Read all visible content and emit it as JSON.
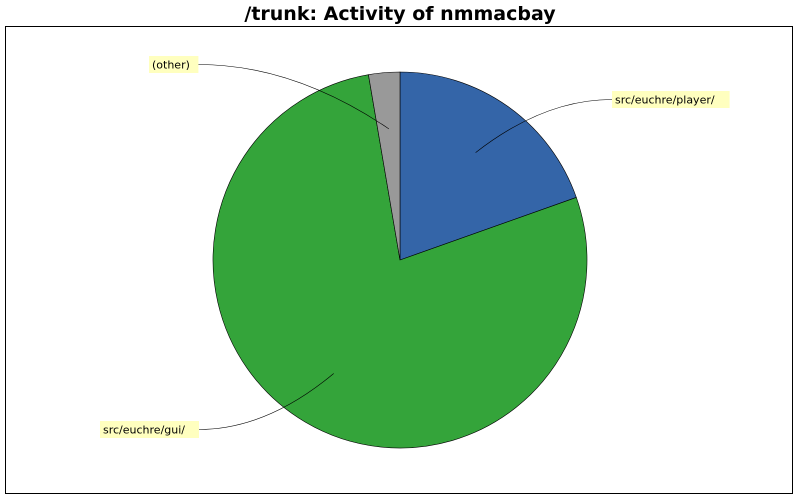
{
  "chart_data": {
    "type": "pie",
    "title": "/trunk: Activity of nmmacbay",
    "slices": [
      {
        "label": "src/euchre/player/",
        "value": 19.6,
        "color": "#3465a8"
      },
      {
        "label": "src/euchre/gui/",
        "value": 77.7,
        "color": "#34a43a"
      },
      {
        "label": "(other)",
        "value": 2.7,
        "color": "#999999"
      }
    ],
    "label_box_color": "#ffffbf",
    "legend": "none"
  }
}
